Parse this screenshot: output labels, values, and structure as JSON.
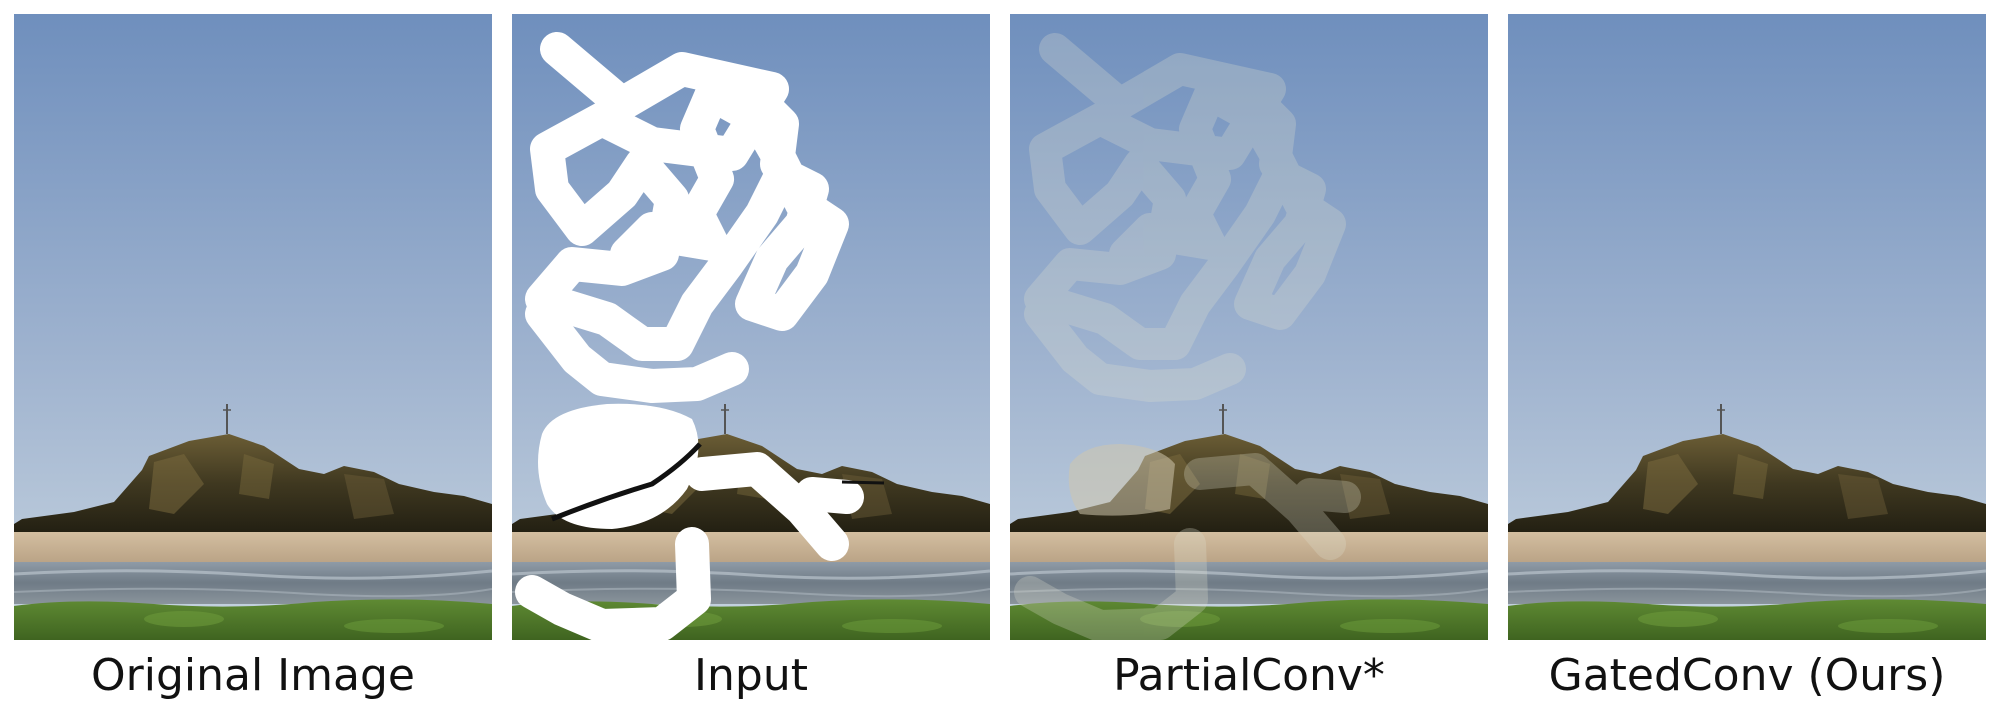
{
  "figure": {
    "panels": [
      {
        "caption": "Original Image",
        "variant": "original"
      },
      {
        "caption": "Input",
        "variant": "masked"
      },
      {
        "caption": "PartialConv*",
        "variant": "ghost"
      },
      {
        "caption": "GatedConv (Ours)",
        "variant": "clean"
      }
    ]
  },
  "colors": {
    "sky_top": "#6f8fbd",
    "sky_bottom": "#c2d2e2",
    "rock_dark": "#2e2a18",
    "rock_mid": "#5a5030",
    "sand": "#c9b497",
    "water": "#7e8c99",
    "grass": "#4f7a2a",
    "mask": "#ffffff",
    "ghost": "#dfe0cf",
    "caption_text": "#111111"
  }
}
